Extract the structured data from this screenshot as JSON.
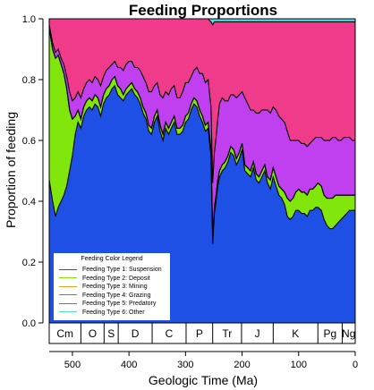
{
  "chart_data": {
    "type": "area",
    "title": "Feeding Proportions",
    "xlabel": "Geologic Time (Ma)",
    "ylabel": "Proportion of feeding",
    "xlim": [
      541,
      0
    ],
    "ylim": [
      0,
      1
    ],
    "x_ticks": [
      500,
      400,
      300,
      200,
      100,
      0
    ],
    "y_ticks": [
      "0.0",
      "0.2",
      "0.4",
      "0.6",
      "0.8",
      "1.0"
    ],
    "periods": [
      {
        "label": "Cm",
        "start": 541,
        "end": 485
      },
      {
        "label": "O",
        "start": 485,
        "end": 444
      },
      {
        "label": "S",
        "start": 444,
        "end": 419
      },
      {
        "label": "D",
        "start": 419,
        "end": 359
      },
      {
        "label": "C",
        "start": 359,
        "end": 299
      },
      {
        "label": "P",
        "start": 299,
        "end": 252
      },
      {
        "label": "Tr",
        "start": 252,
        "end": 201
      },
      {
        "label": "J",
        "start": 201,
        "end": 145
      },
      {
        "label": "K",
        "start": 145,
        "end": 66
      },
      {
        "label": "Pg",
        "start": 66,
        "end": 23
      },
      {
        "label": "Ng",
        "start": 23,
        "end": 0
      }
    ],
    "legend": {
      "title": "Feeding Color Legend",
      "position": "bottom-left"
    },
    "x": [
      541,
      535,
      530,
      525,
      520,
      515,
      510,
      505,
      500,
      495,
      490,
      485,
      480,
      475,
      470,
      465,
      460,
      455,
      450,
      445,
      440,
      435,
      430,
      425,
      420,
      415,
      410,
      405,
      400,
      395,
      390,
      385,
      380,
      375,
      370,
      365,
      360,
      355,
      350,
      345,
      340,
      335,
      330,
      325,
      320,
      315,
      310,
      305,
      300,
      295,
      290,
      285,
      280,
      275,
      270,
      265,
      260,
      255,
      252,
      249,
      246,
      243,
      240,
      235,
      230,
      225,
      220,
      215,
      210,
      205,
      200,
      195,
      190,
      185,
      180,
      175,
      170,
      165,
      160,
      155,
      150,
      145,
      140,
      135,
      130,
      125,
      120,
      115,
      110,
      105,
      100,
      95,
      90,
      85,
      80,
      75,
      70,
      66,
      60,
      55,
      50,
      45,
      40,
      35,
      30,
      25,
      20,
      15,
      10,
      5,
      0
    ],
    "series": [
      {
        "name": "Feeding Type 1: Suspension",
        "color": "#1e50e6",
        "values": [
          0.47,
          0.4,
          0.35,
          0.38,
          0.4,
          0.42,
          0.45,
          0.5,
          0.55,
          0.62,
          0.66,
          0.64,
          0.68,
          0.7,
          0.71,
          0.7,
          0.72,
          0.71,
          0.68,
          0.72,
          0.74,
          0.75,
          0.77,
          0.78,
          0.75,
          0.74,
          0.73,
          0.75,
          0.76,
          0.77,
          0.75,
          0.74,
          0.72,
          0.69,
          0.67,
          0.63,
          0.62,
          0.66,
          0.68,
          0.63,
          0.6,
          0.64,
          0.62,
          0.64,
          0.66,
          0.62,
          0.62,
          0.63,
          0.66,
          0.67,
          0.7,
          0.72,
          0.71,
          0.68,
          0.66,
          0.63,
          0.64,
          0.55,
          0.26,
          0.36,
          0.4,
          0.45,
          0.48,
          0.5,
          0.51,
          0.53,
          0.56,
          0.55,
          0.52,
          0.54,
          0.57,
          0.5,
          0.49,
          0.48,
          0.51,
          0.47,
          0.46,
          0.48,
          0.5,
          0.46,
          0.44,
          0.48,
          0.45,
          0.42,
          0.41,
          0.39,
          0.35,
          0.34,
          0.35,
          0.37,
          0.37,
          0.36,
          0.36,
          0.35,
          0.37,
          0.37,
          0.38,
          0.38,
          0.37,
          0.34,
          0.32,
          0.31,
          0.31,
          0.32,
          0.33,
          0.34,
          0.35,
          0.36,
          0.37,
          0.37,
          0.37
        ]
      },
      {
        "name": "Feeding Type 2: Deposit",
        "color": "#80e60c",
        "values": [
          0.5,
          0.5,
          0.52,
          0.5,
          0.45,
          0.4,
          0.32,
          0.2,
          0.12,
          0.06,
          0.04,
          0.03,
          0.03,
          0.03,
          0.03,
          0.03,
          0.03,
          0.03,
          0.03,
          0.03,
          0.03,
          0.03,
          0.03,
          0.03,
          0.03,
          0.03,
          0.02,
          0.02,
          0.02,
          0.02,
          0.02,
          0.02,
          0.02,
          0.02,
          0.02,
          0.02,
          0.02,
          0.02,
          0.02,
          0.02,
          0.02,
          0.02,
          0.02,
          0.02,
          0.02,
          0.02,
          0.02,
          0.02,
          0.02,
          0.02,
          0.02,
          0.02,
          0.02,
          0.02,
          0.02,
          0.02,
          0.02,
          0.02,
          0.02,
          0.02,
          0.02,
          0.02,
          0.02,
          0.02,
          0.02,
          0.02,
          0.02,
          0.02,
          0.02,
          0.02,
          0.02,
          0.02,
          0.02,
          0.02,
          0.02,
          0.02,
          0.02,
          0.02,
          0.02,
          0.02,
          0.03,
          0.03,
          0.03,
          0.03,
          0.03,
          0.04,
          0.06,
          0.06,
          0.06,
          0.06,
          0.07,
          0.07,
          0.07,
          0.07,
          0.07,
          0.07,
          0.07,
          0.08,
          0.08,
          0.08,
          0.09,
          0.1,
          0.1,
          0.1,
          0.09,
          0.08,
          0.07,
          0.06,
          0.05,
          0.05,
          0.05
        ]
      },
      {
        "name": "Feeding Type 3: Mining",
        "color": "#e6a026",
        "values": [
          0,
          0,
          0,
          0,
          0,
          0,
          0,
          0,
          0,
          0,
          0,
          0,
          0,
          0,
          0,
          0,
          0,
          0,
          0,
          0,
          0,
          0,
          0,
          0,
          0,
          0,
          0,
          0,
          0,
          0,
          0,
          0,
          0,
          0,
          0,
          0,
          0,
          0,
          0,
          0,
          0,
          0,
          0,
          0,
          0,
          0,
          0,
          0,
          0,
          0,
          0,
          0,
          0,
          0,
          0,
          0,
          0,
          0,
          0,
          0,
          0,
          0,
          0,
          0,
          0,
          0,
          0,
          0,
          0,
          0,
          0,
          0,
          0,
          0,
          0,
          0,
          0,
          0,
          0,
          0,
          0,
          0,
          0,
          0,
          0,
          0,
          0,
          0,
          0,
          0,
          0,
          0,
          0,
          0,
          0,
          0,
          0,
          0,
          0,
          0,
          0,
          0,
          0,
          0,
          0,
          0,
          0,
          0,
          0,
          0,
          0
        ]
      },
      {
        "name": "Feeding Type 4: Grazing",
        "color": "#c040f0",
        "values": [
          0.01,
          0.02,
          0.02,
          0.02,
          0.02,
          0.03,
          0.04,
          0.06,
          0.06,
          0.06,
          0.06,
          0.07,
          0.06,
          0.06,
          0.06,
          0.06,
          0.06,
          0.06,
          0.07,
          0.06,
          0.06,
          0.06,
          0.05,
          0.05,
          0.06,
          0.07,
          0.08,
          0.08,
          0.08,
          0.07,
          0.07,
          0.08,
          0.09,
          0.1,
          0.1,
          0.11,
          0.12,
          0.1,
          0.09,
          0.1,
          0.12,
          0.1,
          0.11,
          0.11,
          0.1,
          0.1,
          0.1,
          0.11,
          0.11,
          0.1,
          0.09,
          0.09,
          0.11,
          0.12,
          0.14,
          0.14,
          0.14,
          0.14,
          0.18,
          0.18,
          0.19,
          0.2,
          0.22,
          0.22,
          0.2,
          0.18,
          0.17,
          0.18,
          0.2,
          0.19,
          0.17,
          0.22,
          0.21,
          0.2,
          0.17,
          0.2,
          0.21,
          0.2,
          0.18,
          0.22,
          0.22,
          0.2,
          0.22,
          0.23,
          0.23,
          0.23,
          0.22,
          0.2,
          0.19,
          0.17,
          0.16,
          0.16,
          0.16,
          0.16,
          0.15,
          0.16,
          0.16,
          0.15,
          0.16,
          0.18,
          0.19,
          0.19,
          0.2,
          0.19,
          0.18,
          0.18,
          0.19,
          0.19,
          0.19,
          0.18,
          0.18
        ]
      },
      {
        "name": "Feeding Type 5: Predatory",
        "color": "#f03a8a",
        "values": [
          0.02,
          0.08,
          0.11,
          0.1,
          0.13,
          0.15,
          0.19,
          0.24,
          0.27,
          0.26,
          0.24,
          0.26,
          0.23,
          0.21,
          0.2,
          0.21,
          0.19,
          0.2,
          0.22,
          0.19,
          0.17,
          0.16,
          0.15,
          0.14,
          0.16,
          0.16,
          0.17,
          0.15,
          0.14,
          0.14,
          0.16,
          0.16,
          0.17,
          0.19,
          0.21,
          0.24,
          0.24,
          0.22,
          0.21,
          0.25,
          0.26,
          0.24,
          0.25,
          0.23,
          0.22,
          0.26,
          0.26,
          0.24,
          0.21,
          0.21,
          0.19,
          0.17,
          0.16,
          0.18,
          0.18,
          0.21,
          0.2,
          0.28,
          0.52,
          0.43,
          0.38,
          0.32,
          0.27,
          0.25,
          0.26,
          0.26,
          0.24,
          0.24,
          0.25,
          0.24,
          0.23,
          0.25,
          0.27,
          0.29,
          0.29,
          0.3,
          0.3,
          0.29,
          0.29,
          0.29,
          0.3,
          0.28,
          0.29,
          0.31,
          0.32,
          0.33,
          0.36,
          0.39,
          0.39,
          0.39,
          0.39,
          0.4,
          0.4,
          0.41,
          0.4,
          0.39,
          0.38,
          0.38,
          0.38,
          0.39,
          0.39,
          0.39,
          0.38,
          0.38,
          0.39,
          0.39,
          0.38,
          0.38,
          0.38,
          0.39,
          0.39
        ]
      },
      {
        "name": "Feeding Type 6: Other",
        "color": "#4fd9e6",
        "values": [
          0,
          0,
          0,
          0,
          0,
          0,
          0,
          0,
          0,
          0,
          0,
          0,
          0,
          0,
          0,
          0,
          0,
          0,
          0,
          0,
          0,
          0,
          0,
          0,
          0,
          0,
          0,
          0,
          0,
          0,
          0,
          0,
          0,
          0,
          0,
          0,
          0,
          0,
          0,
          0,
          0,
          0,
          0,
          0,
          0,
          0,
          0,
          0,
          0,
          0,
          0,
          0,
          0,
          0,
          0,
          0,
          0,
          0.01,
          0.02,
          0.01,
          0.01,
          0.01,
          0.01,
          0.01,
          0.01,
          0.01,
          0.01,
          0.01,
          0.01,
          0.01,
          0.01,
          0.01,
          0.01,
          0.01,
          0.01,
          0.01,
          0.01,
          0.01,
          0.01,
          0.01,
          0.01,
          0.01,
          0.01,
          0.01,
          0.01,
          0.01,
          0.01,
          0.01,
          0.01,
          0.01,
          0.01,
          0.01,
          0.01,
          0.01,
          0.01,
          0.01,
          0.01,
          0.01,
          0.01,
          0.01,
          0.01,
          0.01,
          0.01,
          0.01,
          0.01,
          0.01,
          0.01,
          0.01,
          0.01,
          0.01,
          0.01
        ]
      }
    ]
  }
}
